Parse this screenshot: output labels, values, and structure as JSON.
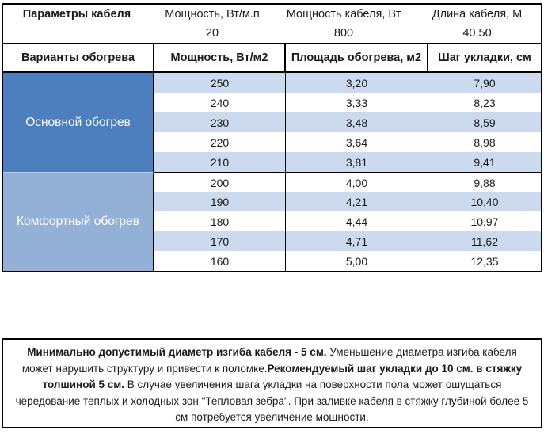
{
  "cable_params": {
    "title": "Параметры кабеля",
    "headers": [
      "Мощность, Вт/м.п",
      "Мощность кабеля, Вт",
      "Длина кабеля, М"
    ],
    "values": [
      "20",
      "800",
      "40,50"
    ]
  },
  "table": {
    "col1_header": "Варианты обогрева",
    "headers": [
      "Мощность, Вт/м2",
      "Площадь обогрева, м2",
      "Шаг укладки, см"
    ],
    "groups": [
      {
        "label": "Основной обогрев",
        "rows": [
          [
            "250",
            "3,20",
            "7,90"
          ],
          [
            "240",
            "3,33",
            "8,23"
          ],
          [
            "230",
            "3,48",
            "8,59"
          ],
          [
            "220",
            "3,64",
            "8,98"
          ],
          [
            "210",
            "3,81",
            "9,41"
          ]
        ]
      },
      {
        "label": "Комфортный обогрев",
        "rows": [
          [
            "200",
            "4,00",
            "9,88"
          ],
          [
            "190",
            "4,21",
            "10,40"
          ],
          [
            "180",
            "4,44",
            "10,97"
          ],
          [
            "170",
            "4,71",
            "11,62"
          ],
          [
            "160",
            "5,00",
            "12,35"
          ]
        ]
      }
    ]
  },
  "note": {
    "bold1": "Минимально допустимый диаметр изгиба кабеля - 5 см.",
    "text1": "  Уменьшение диаметра изгиба кабеля может нарушить структуру и привести к поломке.",
    "bold2": "Рекомендуемый шаг укладки до 10 см. в стяжку толшиной 5 см.",
    "text2": " В  случае увеличения шага укладки на поверхности пола может ошущаться чередование теплых и холодных зон \"Тепловая зебра\". При заливке кабеля в стяжку глубиной более 5 см потребуется увеличение мощности."
  },
  "colors": {
    "group_main_blue": "#4d7ebd",
    "group_comfort_blue": "#93b1d6",
    "row_stripe_blue": "#ccdaef",
    "border_black": "#000000"
  }
}
